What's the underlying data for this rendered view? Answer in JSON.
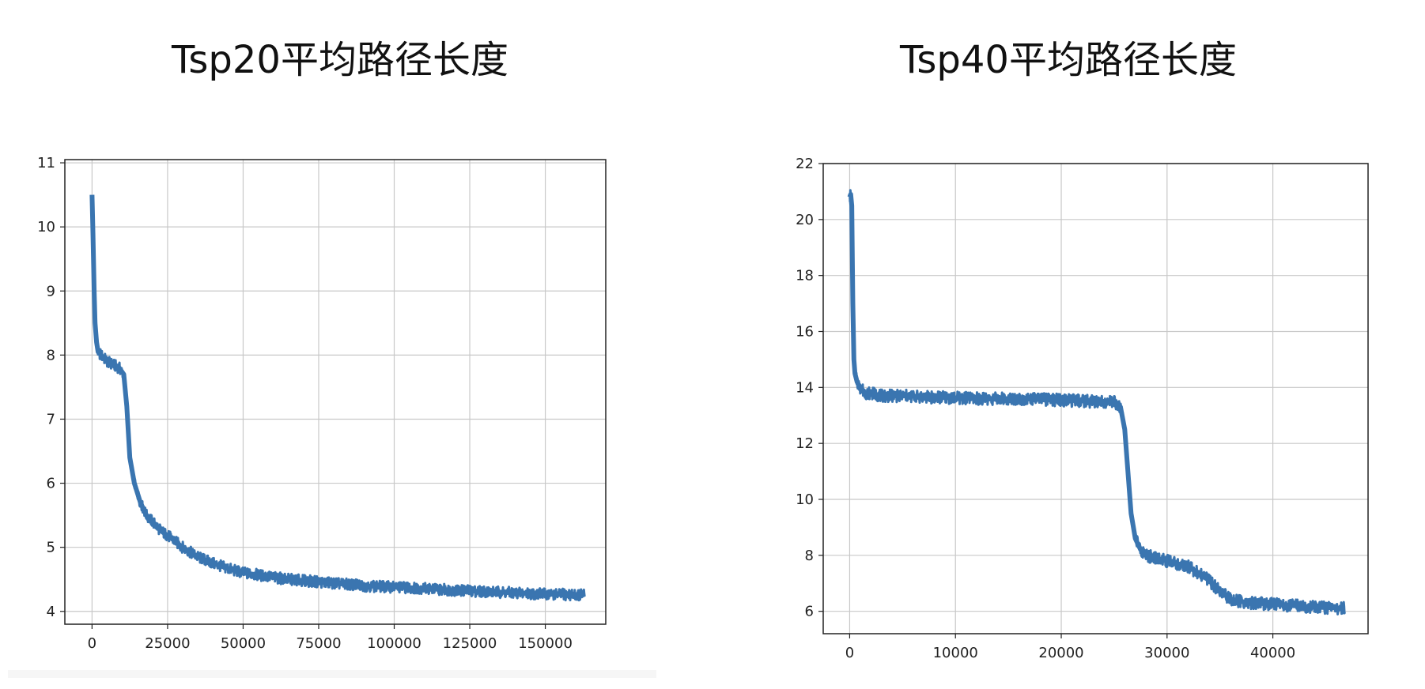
{
  "colors": {
    "line": "#3a75b0",
    "grid": "#c8c8c8",
    "frame": "#222222"
  },
  "chart_data": [
    {
      "type": "line",
      "title": "Tsp20平均路径长度",
      "xlim": [
        -9000,
        170000
      ],
      "ylim": [
        3.8,
        11.05
      ],
      "xticks": [
        0,
        25000,
        50000,
        75000,
        100000,
        125000,
        150000
      ],
      "yticks": [
        4,
        5,
        6,
        7,
        8,
        9,
        10,
        11
      ],
      "grid": true,
      "band_width": 0.18,
      "series": [
        {
          "x": [
            0,
            300,
            700,
            1000,
            1500,
            2000,
            3000,
            5000,
            7000,
            9000,
            10500,
            11500,
            12500,
            14000,
            16000,
            18000,
            20000,
            23000,
            26000,
            30000,
            35000,
            40000,
            45000,
            50000,
            55000,
            60000,
            65000,
            70000,
            75000,
            80000,
            90000,
            100000,
            110000,
            120000,
            130000,
            140000,
            150000,
            158000,
            163000
          ],
          "y": [
            10.5,
            9.9,
            9.0,
            8.5,
            8.2,
            8.05,
            8.0,
            7.9,
            7.85,
            7.8,
            7.7,
            7.2,
            6.4,
            6.0,
            5.7,
            5.5,
            5.4,
            5.25,
            5.15,
            5.0,
            4.85,
            4.75,
            4.67,
            4.6,
            4.57,
            4.53,
            4.5,
            4.48,
            4.46,
            4.44,
            4.4,
            4.38,
            4.36,
            4.33,
            4.31,
            4.29,
            4.27,
            4.26,
            4.26
          ]
        }
      ]
    },
    {
      "type": "line",
      "title": "Tsp40平均路径长度",
      "xlim": [
        -2500,
        49000
      ],
      "ylim": [
        5.2,
        22.0
      ],
      "xticks": [
        0,
        10000,
        20000,
        30000,
        40000
      ],
      "yticks": [
        6,
        8,
        10,
        12,
        14,
        16,
        18,
        20,
        22
      ],
      "grid": true,
      "band_width": 0.45,
      "series": [
        {
          "x": [
            0,
            100,
            200,
            300,
            400,
            500,
            700,
            1000,
            1500,
            2000,
            3000,
            5000,
            8000,
            12000,
            16000,
            20000,
            23000,
            25000,
            25600,
            26000,
            26300,
            26600,
            27000,
            27500,
            28000,
            29000,
            30000,
            32000,
            34000,
            35000,
            36000,
            37000,
            38000,
            40000,
            42000,
            44000,
            46000,
            46800
          ],
          "y": [
            20.8,
            20.9,
            20.5,
            17.0,
            15.0,
            14.5,
            14.2,
            14.0,
            13.8,
            13.8,
            13.7,
            13.7,
            13.65,
            13.6,
            13.6,
            13.55,
            13.5,
            13.5,
            13.3,
            12.5,
            11.0,
            9.5,
            8.6,
            8.2,
            8.0,
            7.9,
            7.8,
            7.6,
            7.1,
            6.7,
            6.45,
            6.35,
            6.3,
            6.25,
            6.2,
            6.15,
            6.12,
            6.1
          ]
        }
      ]
    }
  ]
}
